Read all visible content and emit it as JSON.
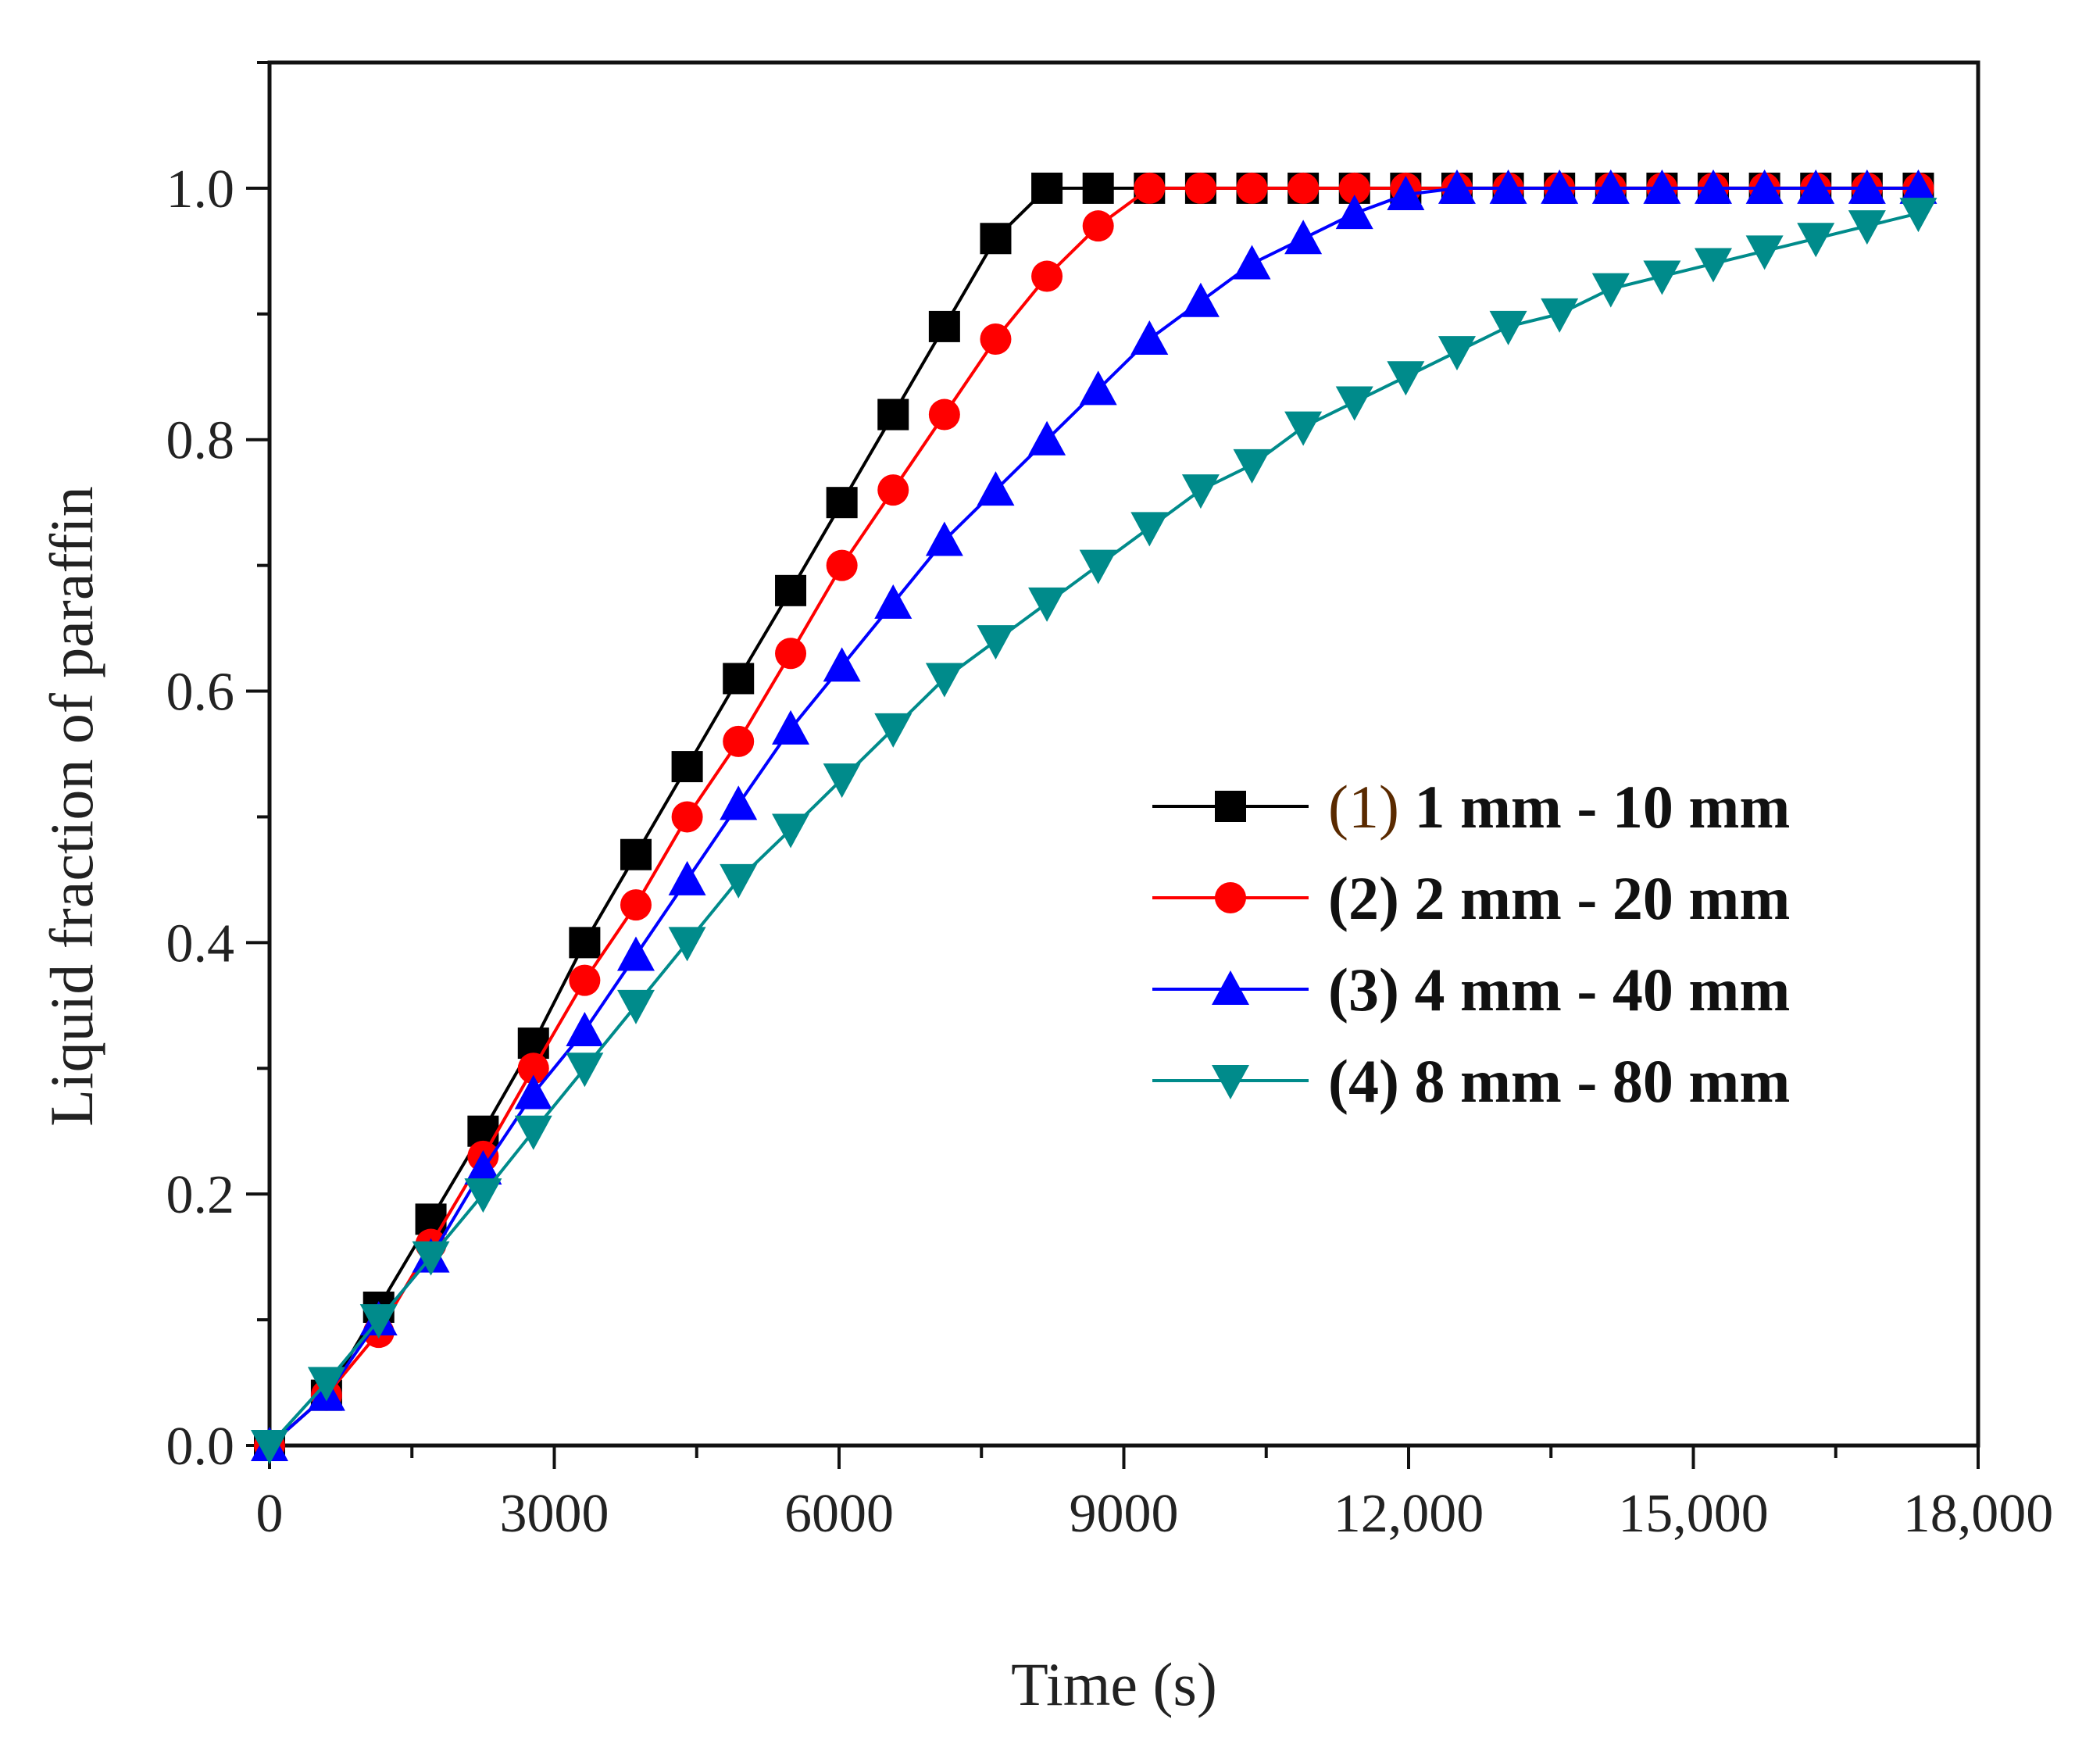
{
  "chart_data": {
    "type": "line",
    "title": "",
    "xlabel": "Time (s)",
    "ylabel": "Liquid fraction of paraffin",
    "xlim": [
      0,
      18000
    ],
    "ylim": [
      0,
      1.1
    ],
    "xticks": [
      0,
      3000,
      6000,
      9000,
      12000,
      15000,
      18000
    ],
    "xtick_labels": [
      "0",
      "3000",
      "6000",
      "9000",
      "12,000",
      "15,000",
      "18,000"
    ],
    "yticks": [
      0.0,
      0.2,
      0.4,
      0.6,
      0.8,
      1.0
    ],
    "ytick_labels": [
      "0.0",
      "0.2",
      "0.4",
      "0.6",
      "0.8",
      "1.0"
    ],
    "grid": false,
    "legend_position": "right-middle",
    "x": [
      0,
      600,
      1150,
      1700,
      2250,
      2780,
      3320,
      3860,
      4400,
      4940,
      5490,
      6030,
      6570,
      7110,
      7650,
      8190,
      8730,
      9270,
      9810,
      10350,
      10890,
      11430,
      11970,
      12510,
      13050,
      13590,
      14130,
      14670,
      15210,
      15750,
      16290,
      16830,
      17370
    ],
    "series": [
      {
        "name": "(1) 1 mm - 10 mm",
        "legend_prefix": "(1)",
        "legend_text": " 1 mm - 10 mm",
        "color": "#000000",
        "marker": "square",
        "values": [
          0.0,
          0.04,
          0.11,
          0.18,
          0.25,
          0.32,
          0.4,
          0.47,
          0.54,
          0.61,
          0.68,
          0.75,
          0.82,
          0.89,
          0.96,
          1.0,
          1.0,
          1.0,
          1.0,
          1.0,
          1.0,
          1.0,
          1.0,
          1.0,
          1.0,
          1.0,
          1.0,
          1.0,
          1.0,
          1.0,
          1.0,
          1.0,
          1.0
        ]
      },
      {
        "name": "(2) 2 mm - 20 mm",
        "legend_prefix": "(2)",
        "legend_text": " 2 mm - 20 mm",
        "color": "#ff0000",
        "marker": "circle",
        "values": [
          0.0,
          0.04,
          0.09,
          0.16,
          0.23,
          0.3,
          0.37,
          0.43,
          0.5,
          0.56,
          0.63,
          0.7,
          0.76,
          0.82,
          0.88,
          0.93,
          0.97,
          1.0,
          1.0,
          1.0,
          1.0,
          1.0,
          1.0,
          1.0,
          1.0,
          1.0,
          1.0,
          1.0,
          1.0,
          1.0,
          1.0,
          1.0,
          1.0
        ]
      },
      {
        "name": "(3) 4 mm - 40 mm",
        "legend_prefix": "(3)",
        "legend_text": " 4 mm - 40 mm",
        "color": "#0000ff",
        "marker": "triangle-up",
        "values": [
          0.0,
          0.04,
          0.1,
          0.15,
          0.22,
          0.28,
          0.33,
          0.39,
          0.45,
          0.51,
          0.57,
          0.62,
          0.67,
          0.72,
          0.76,
          0.8,
          0.84,
          0.88,
          0.91,
          0.94,
          0.96,
          0.98,
          0.995,
          1.0,
          1.0,
          1.0,
          1.0,
          1.0,
          1.0,
          1.0,
          1.0,
          1.0,
          1.0
        ]
      },
      {
        "name": "(4) 8 mm - 80 mm",
        "legend_prefix": "(4)",
        "legend_text": " 8 mm - 80 mm",
        "color": "#008b8b",
        "marker": "triangle-down",
        "values": [
          0.0,
          0.05,
          0.1,
          0.15,
          0.2,
          0.25,
          0.3,
          0.35,
          0.4,
          0.45,
          0.49,
          0.53,
          0.57,
          0.61,
          0.64,
          0.67,
          0.7,
          0.73,
          0.76,
          0.78,
          0.81,
          0.83,
          0.85,
          0.87,
          0.89,
          0.9,
          0.92,
          0.93,
          0.94,
          0.95,
          0.96,
          0.97,
          0.98
        ]
      }
    ]
  }
}
